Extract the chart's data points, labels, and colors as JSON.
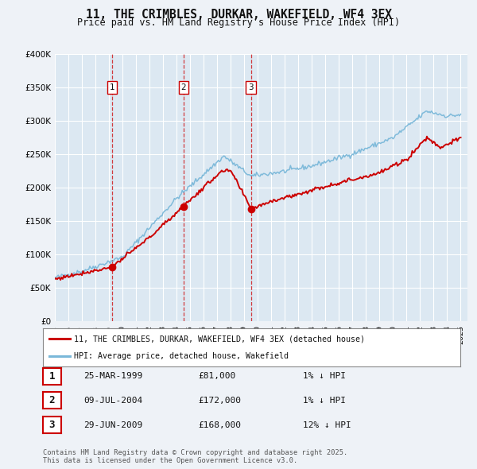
{
  "title": "11, THE CRIMBLES, DURKAR, WAKEFIELD, WF4 3EX",
  "subtitle": "Price paid vs. HM Land Registry's House Price Index (HPI)",
  "bg_color": "#eef2f7",
  "plot_bg_color": "#dce8f2",
  "grid_color": "#ffffff",
  "hpi_color": "#7ab8d9",
  "price_color": "#cc0000",
  "vline_color": "#cc0000",
  "ylim": [
    0,
    400000
  ],
  "yticks": [
    0,
    50000,
    100000,
    150000,
    200000,
    250000,
    300000,
    350000,
    400000
  ],
  "ytick_labels": [
    "£0",
    "£50K",
    "£100K",
    "£150K",
    "£200K",
    "£250K",
    "£300K",
    "£350K",
    "£400K"
  ],
  "xmin": 1995,
  "xmax": 2025.5,
  "sale1_x": 1999.22,
  "sale1_y": 81000,
  "sale2_x": 2004.52,
  "sale2_y": 172000,
  "sale3_x": 2009.49,
  "sale3_y": 168000,
  "legend_line1": "11, THE CRIMBLES, DURKAR, WAKEFIELD, WF4 3EX (detached house)",
  "legend_line2": "HPI: Average price, detached house, Wakefield",
  "table_rows": [
    {
      "num": "1",
      "date": "25-MAR-1999",
      "price": "£81,000",
      "hpi": "1% ↓ HPI"
    },
    {
      "num": "2",
      "date": "09-JUL-2004",
      "price": "£172,000",
      "hpi": "1% ↓ HPI"
    },
    {
      "num": "3",
      "date": "29-JUN-2009",
      "price": "£168,000",
      "hpi": "12% ↓ HPI"
    }
  ],
  "footer": "Contains HM Land Registry data © Crown copyright and database right 2025.\nThis data is licensed under the Open Government Licence v3.0."
}
